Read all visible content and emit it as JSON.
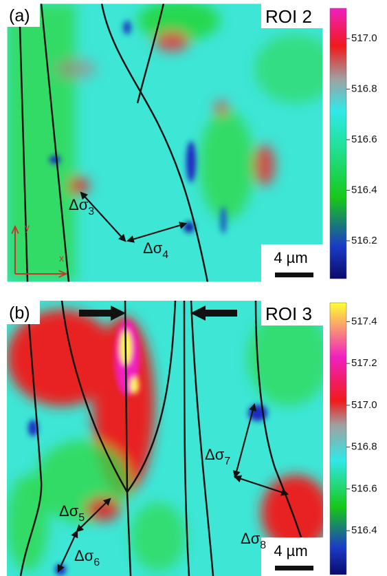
{
  "panels": [
    {
      "label": "(a)",
      "roi": "ROI 2",
      "scale_bar": "4 µm",
      "axes": {
        "x": "x",
        "y": "y"
      },
      "colorbar": {
        "lim": [
          516.05,
          517.12
        ],
        "ticks": [
          516.2,
          516.4,
          516.6,
          516.8,
          {
            "value": 517,
            "label": "517.0"
          }
        ]
      },
      "annotations": [
        {
          "symbol": "Δσ",
          "sub": "3"
        },
        {
          "symbol": "Δσ",
          "sub": "4"
        }
      ]
    },
    {
      "label": "(b)",
      "roi": "ROI 3",
      "scale_bar": "4 µm",
      "colorbar": {
        "lim": [
          516.19,
          517.49
        ],
        "ticks": [
          516.4,
          516.6,
          516.8,
          {
            "value": 517,
            "label": "517.0"
          },
          517.2,
          517.4
        ]
      },
      "annotations": [
        {
          "symbol": "Δσ",
          "sub": "5"
        },
        {
          "symbol": "Δσ",
          "sub": "6"
        },
        {
          "symbol": "Δσ",
          "sub": "7"
        },
        {
          "symbol": "Δσ",
          "sub": "8"
        }
      ]
    }
  ]
}
